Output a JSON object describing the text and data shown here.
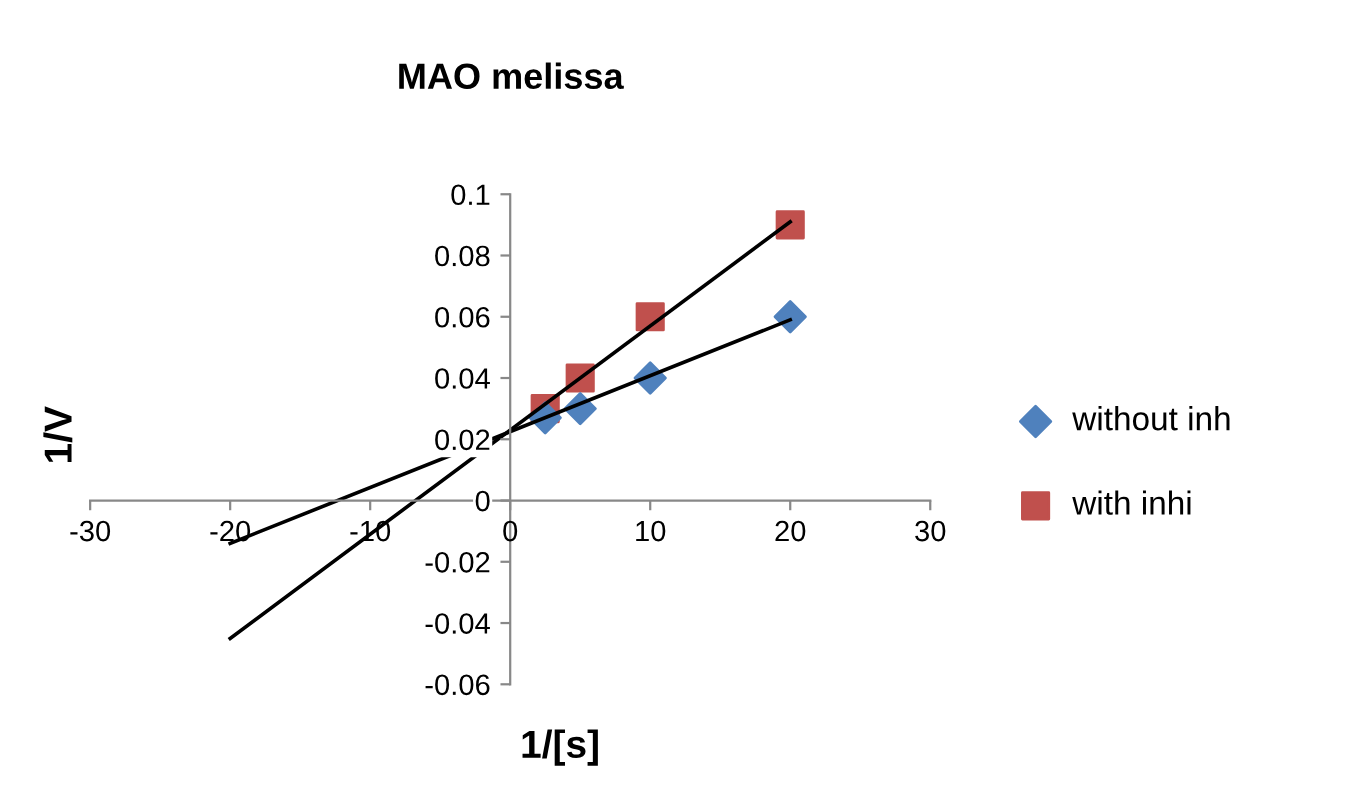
{
  "chart_data": {
    "type": "scatter",
    "title": "MAO melissa",
    "xlabel": "1/[s]",
    "ylabel": "1/V",
    "xlim": [
      -30,
      30
    ],
    "ylim": [
      -0.06,
      0.1
    ],
    "xticks": [
      -30,
      -20,
      -10,
      0,
      10,
      20,
      30
    ],
    "yticks": [
      -0.06,
      -0.04,
      -0.02,
      0,
      0.02,
      0.04,
      0.06,
      0.08,
      0.1
    ],
    "grid": false,
    "legend": "right",
    "series": [
      {
        "name": "without inh",
        "color": "#4f81bd",
        "marker": "diamond",
        "x": [
          2.5,
          5,
          10,
          20
        ],
        "values": [
          0.027,
          0.03,
          0.04,
          0.06
        ]
      },
      {
        "name": "with inhi",
        "color": "#c0504d",
        "marker": "square",
        "x": [
          2.5,
          5,
          10,
          20
        ],
        "values": [
          0.03,
          0.04,
          0.06,
          0.09
        ]
      },
      {
        "type": "line",
        "color": "#000000",
        "marker": "none",
        "x": [
          -20,
          20
        ],
        "values": [
          -0.014,
          0.059
        ]
      },
      {
        "type": "line",
        "color": "#000000",
        "marker": "none",
        "x": [
          -20,
          20
        ],
        "values": [
          -0.045,
          0.091
        ]
      }
    ]
  }
}
